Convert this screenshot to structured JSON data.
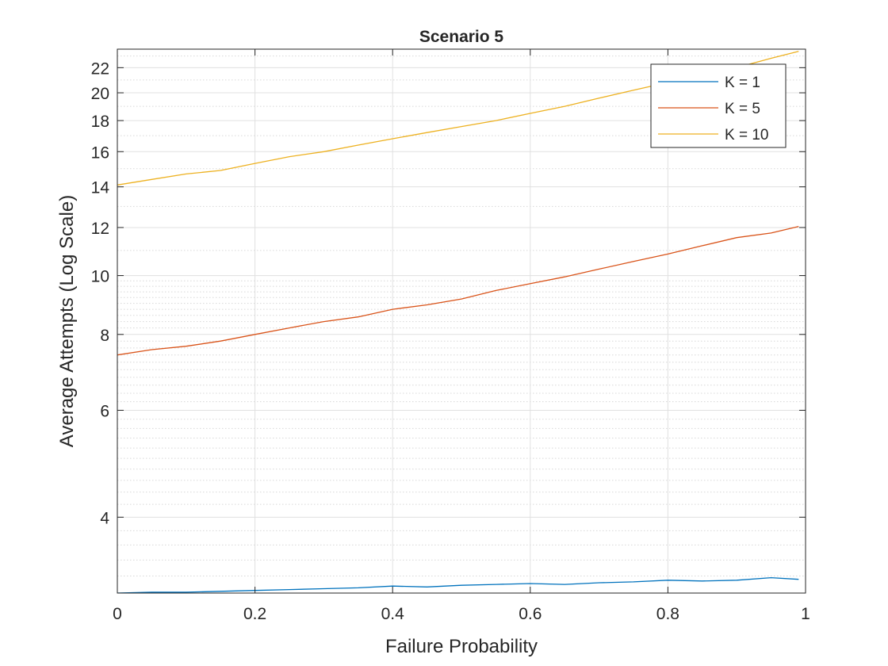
{
  "chart_data": {
    "type": "line",
    "title": "Scenario 5",
    "xlabel": "Failure Probability",
    "ylabel": "Average Attempts (Log Scale)",
    "xlim": [
      0,
      1
    ],
    "ylim": [
      3.0,
      23.6
    ],
    "yscale": "log",
    "grid": true,
    "legend_position": "top-right",
    "xticks": [
      0,
      0.2,
      0.4,
      0.6,
      0.8,
      1
    ],
    "xtick_labels": [
      "0",
      "0.2",
      "0.4",
      "0.6",
      "0.8",
      "1"
    ],
    "yticks": [
      4,
      6,
      8,
      10,
      12,
      14,
      16,
      18,
      20,
      22
    ],
    "ytick_labels": [
      "4",
      "6",
      "8",
      "10",
      "12",
      "14",
      "16",
      "18",
      "20",
      "22"
    ],
    "series": [
      {
        "name": "K = 1",
        "color": "#0072BD",
        "x": [
          0,
          0.05,
          0.1,
          0.15,
          0.2,
          0.25,
          0.3,
          0.35,
          0.4,
          0.45,
          0.5,
          0.55,
          0.6,
          0.65,
          0.7,
          0.75,
          0.8,
          0.85,
          0.9,
          0.95,
          0.99
        ],
        "y": [
          3.0,
          3.01,
          3.01,
          3.02,
          3.03,
          3.04,
          3.05,
          3.06,
          3.08,
          3.07,
          3.09,
          3.1,
          3.11,
          3.1,
          3.12,
          3.13,
          3.15,
          3.14,
          3.15,
          3.18,
          3.16
        ]
      },
      {
        "name": "K = 5",
        "color": "#D95319",
        "x": [
          0,
          0.05,
          0.1,
          0.15,
          0.2,
          0.25,
          0.3,
          0.35,
          0.4,
          0.45,
          0.5,
          0.55,
          0.6,
          0.65,
          0.7,
          0.75,
          0.8,
          0.85,
          0.9,
          0.95,
          0.99
        ],
        "y": [
          7.4,
          7.55,
          7.65,
          7.8,
          8.0,
          8.2,
          8.4,
          8.55,
          8.8,
          8.95,
          9.15,
          9.45,
          9.7,
          9.95,
          10.25,
          10.55,
          10.85,
          11.2,
          11.55,
          11.75,
          12.05
        ]
      },
      {
        "name": "K = 10",
        "color": "#EDB120",
        "x": [
          0,
          0.05,
          0.1,
          0.15,
          0.2,
          0.25,
          0.3,
          0.35,
          0.4,
          0.45,
          0.5,
          0.55,
          0.6,
          0.65,
          0.7,
          0.75,
          0.8,
          0.85,
          0.9,
          0.95,
          0.99
        ],
        "y": [
          14.1,
          14.4,
          14.7,
          14.9,
          15.3,
          15.7,
          16.0,
          16.4,
          16.8,
          17.2,
          17.6,
          18.0,
          18.5,
          19.0,
          19.6,
          20.2,
          20.8,
          21.4,
          22.0,
          22.8,
          23.4
        ]
      }
    ]
  }
}
